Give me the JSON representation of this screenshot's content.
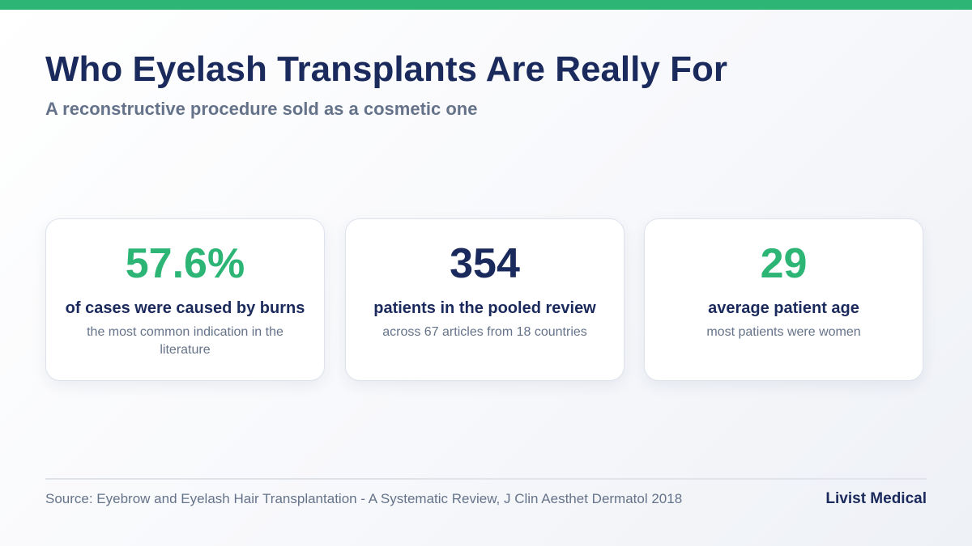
{
  "colors": {
    "accent_green": "#2db575",
    "navy": "#1b2a5c",
    "muted": "#65738a"
  },
  "header": {
    "title": "Who Eyelash Transplants Are Really For",
    "subtitle": "A reconstructive procedure sold as a cosmetic one"
  },
  "stats": [
    {
      "value": "57.6%",
      "label": "of cases were caused by burns",
      "note": "the most common indication in the literature",
      "color": "#2db575"
    },
    {
      "value": "354",
      "label": "patients in the pooled review",
      "note": "across 67 articles from 18 countries",
      "color": "#1b2a5c"
    },
    {
      "value": "29",
      "label": "average patient age",
      "note": "most patients were women",
      "color": "#2db575"
    }
  ],
  "footer": {
    "source": "Source: Eyebrow and Eyelash Hair Transplantation - A Systematic Review, J Clin Aesthet Dermatol 2018",
    "brand": "Livist Medical"
  }
}
